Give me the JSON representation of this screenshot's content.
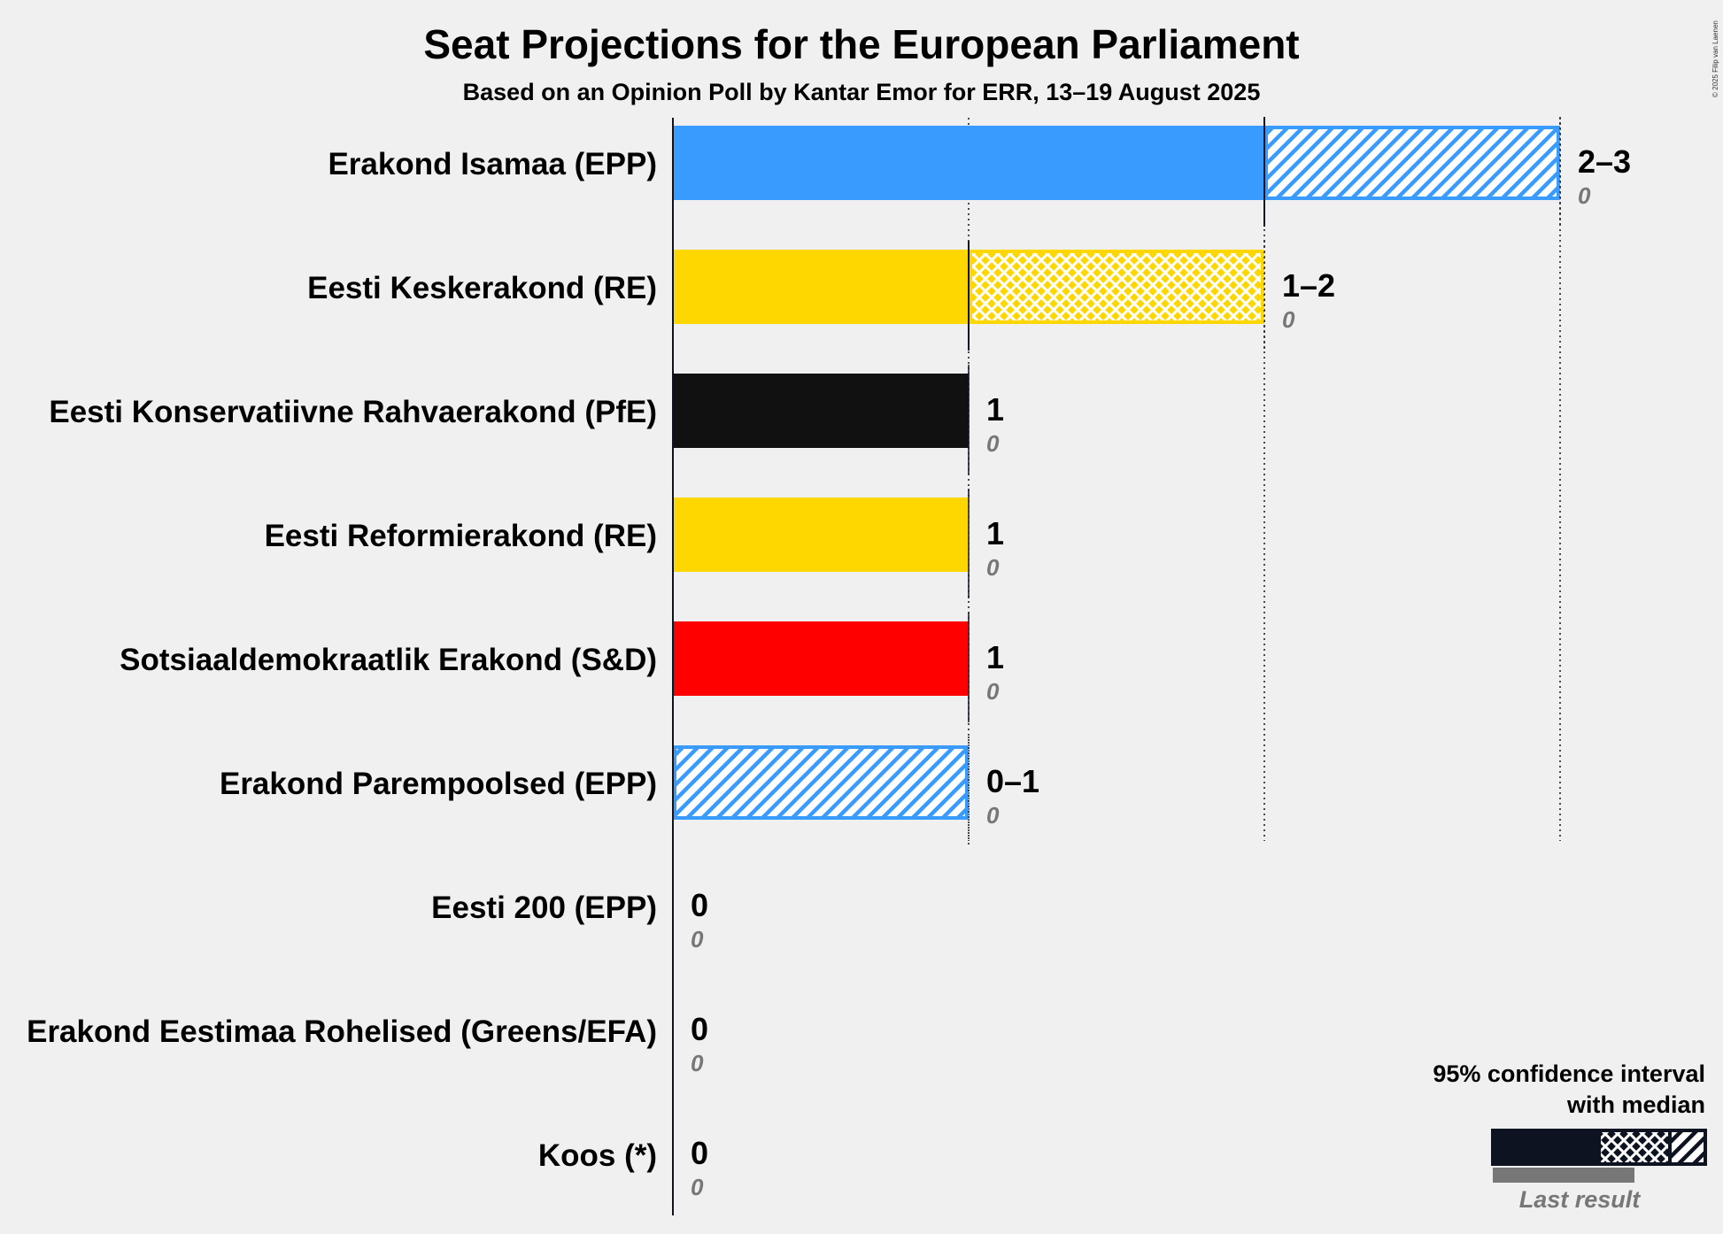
{
  "chart_data": {
    "type": "bar",
    "title": "Seat Projections for the European Parliament",
    "subtitle": "Based on an Opinion Poll by Kantar Emor for ERR, 13–19 August 2025",
    "copyright": "© 2025 Filip van Laenen",
    "xlim": [
      0,
      3
    ],
    "parties": [
      {
        "name": "Erakond Isamaa (EPP)",
        "low": 2,
        "median": 2,
        "high": 3,
        "range_label": "2–3",
        "last_result": "0",
        "color": "#3a9bff"
      },
      {
        "name": "Eesti Keskerakond (RE)",
        "low": 1,
        "median": 1,
        "high": 2,
        "range_label": "1–2",
        "last_result": "0",
        "color": "#ffd700"
      },
      {
        "name": "Eesti Konservatiivne Rahvaerakond (PfE)",
        "low": 1,
        "median": 1,
        "high": 1,
        "range_label": "1",
        "last_result": "0",
        "color": "#111111"
      },
      {
        "name": "Eesti Reformierakond (RE)",
        "low": 1,
        "median": 1,
        "high": 1,
        "range_label": "1",
        "last_result": "0",
        "color": "#ffd700"
      },
      {
        "name": "Sotsiaaldemokraatlik Erakond (S&D)",
        "low": 1,
        "median": 1,
        "high": 1,
        "range_label": "1",
        "last_result": "0",
        "color": "#ff0000"
      },
      {
        "name": "Erakond Parempoolsed (EPP)",
        "low": 0,
        "median": 0,
        "high": 1,
        "range_label": "0–1",
        "last_result": "0",
        "color": "#3a9bff"
      },
      {
        "name": "Eesti 200 (EPP)",
        "low": 0,
        "median": 0,
        "high": 0,
        "range_label": "0",
        "last_result": "0",
        "color": "#3a9bff"
      },
      {
        "name": "Erakond Eestimaa Rohelised (Greens/EFA)",
        "low": 0,
        "median": 0,
        "high": 0,
        "range_label": "0",
        "last_result": "0",
        "color": "#3cb44b"
      },
      {
        "name": "Koos (*)",
        "low": 0,
        "median": 0,
        "high": 0,
        "range_label": "0",
        "last_result": "0",
        "color": "#888888"
      }
    ],
    "legend": {
      "line1": "95% confidence interval",
      "line2": "with median",
      "last_result": "Last result",
      "color": "#0d1321"
    }
  }
}
